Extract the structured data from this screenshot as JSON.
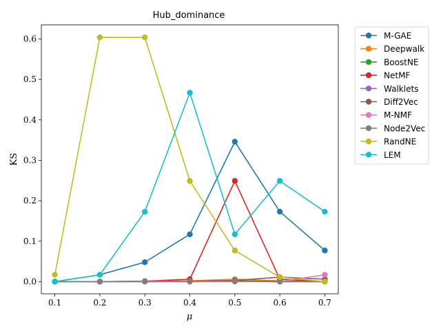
{
  "chart_data": {
    "type": "line",
    "title": "Hub_dominance",
    "xlabel": "μ",
    "ylabel": "KS",
    "x": [
      0.1,
      0.2,
      0.3,
      0.4,
      0.5,
      0.6,
      0.7
    ],
    "x_tick_labels": [
      "0.1",
      "0.2",
      "0.3",
      "0.4",
      "0.5",
      "0.6",
      "0.7"
    ],
    "y_ticks": [
      0.0,
      0.1,
      0.2,
      0.3,
      0.4,
      0.5,
      0.6
    ],
    "y_tick_labels": [
      "0.0",
      "0.1",
      "0.2",
      "0.3",
      "0.4",
      "0.5",
      "0.6"
    ],
    "xlim": [
      0.07,
      0.73
    ],
    "ylim": [
      -0.03,
      0.635
    ],
    "grid": false,
    "legend_position": "outside-right-top",
    "series": [
      {
        "name": "M-GAE",
        "color": "#1f77b4",
        "values": [
          0.0,
          0.017,
          0.048,
          0.117,
          0.346,
          0.173,
          0.077
        ]
      },
      {
        "name": "Deepwalk",
        "color": "#ff7f0e",
        "values": [
          0.0,
          0.0,
          0.001,
          0.002,
          0.006,
          0.002,
          0.0
        ]
      },
      {
        "name": "BoostNE",
        "color": "#2ca02c",
        "values": [
          0.0,
          0.0,
          0.0,
          0.0,
          0.002,
          0.001,
          0.0
        ]
      },
      {
        "name": "NetMF",
        "color": "#d62728",
        "values": [
          0.0,
          0.0,
          0.001,
          0.006,
          0.249,
          0.006,
          0.0
        ]
      },
      {
        "name": "Walklets",
        "color": "#9467bd",
        "values": [
          0.0,
          0.0,
          0.0,
          0.0,
          0.001,
          0.0,
          0.0
        ]
      },
      {
        "name": "Diff2Vec",
        "color": "#8c564b",
        "values": [
          0.0,
          0.0,
          0.0,
          0.001,
          0.003,
          0.011,
          0.006
        ]
      },
      {
        "name": "M-NMF",
        "color": "#e377c2",
        "values": [
          0.0,
          0.0,
          0.0,
          0.0,
          0.0,
          0.0,
          0.017
        ]
      },
      {
        "name": "Node2Vec",
        "color": "#7f7f7f",
        "values": [
          0.0,
          0.0,
          0.001,
          0.001,
          0.001,
          0.0,
          0.0
        ]
      },
      {
        "name": "RandNE",
        "color": "#bcbd22",
        "values": [
          0.017,
          0.604,
          0.604,
          0.249,
          0.077,
          0.011,
          0.0
        ]
      },
      {
        "name": "LEM",
        "color": "#17becf",
        "values": [
          0.0,
          0.017,
          0.173,
          0.467,
          0.117,
          0.249,
          0.173
        ]
      }
    ]
  }
}
